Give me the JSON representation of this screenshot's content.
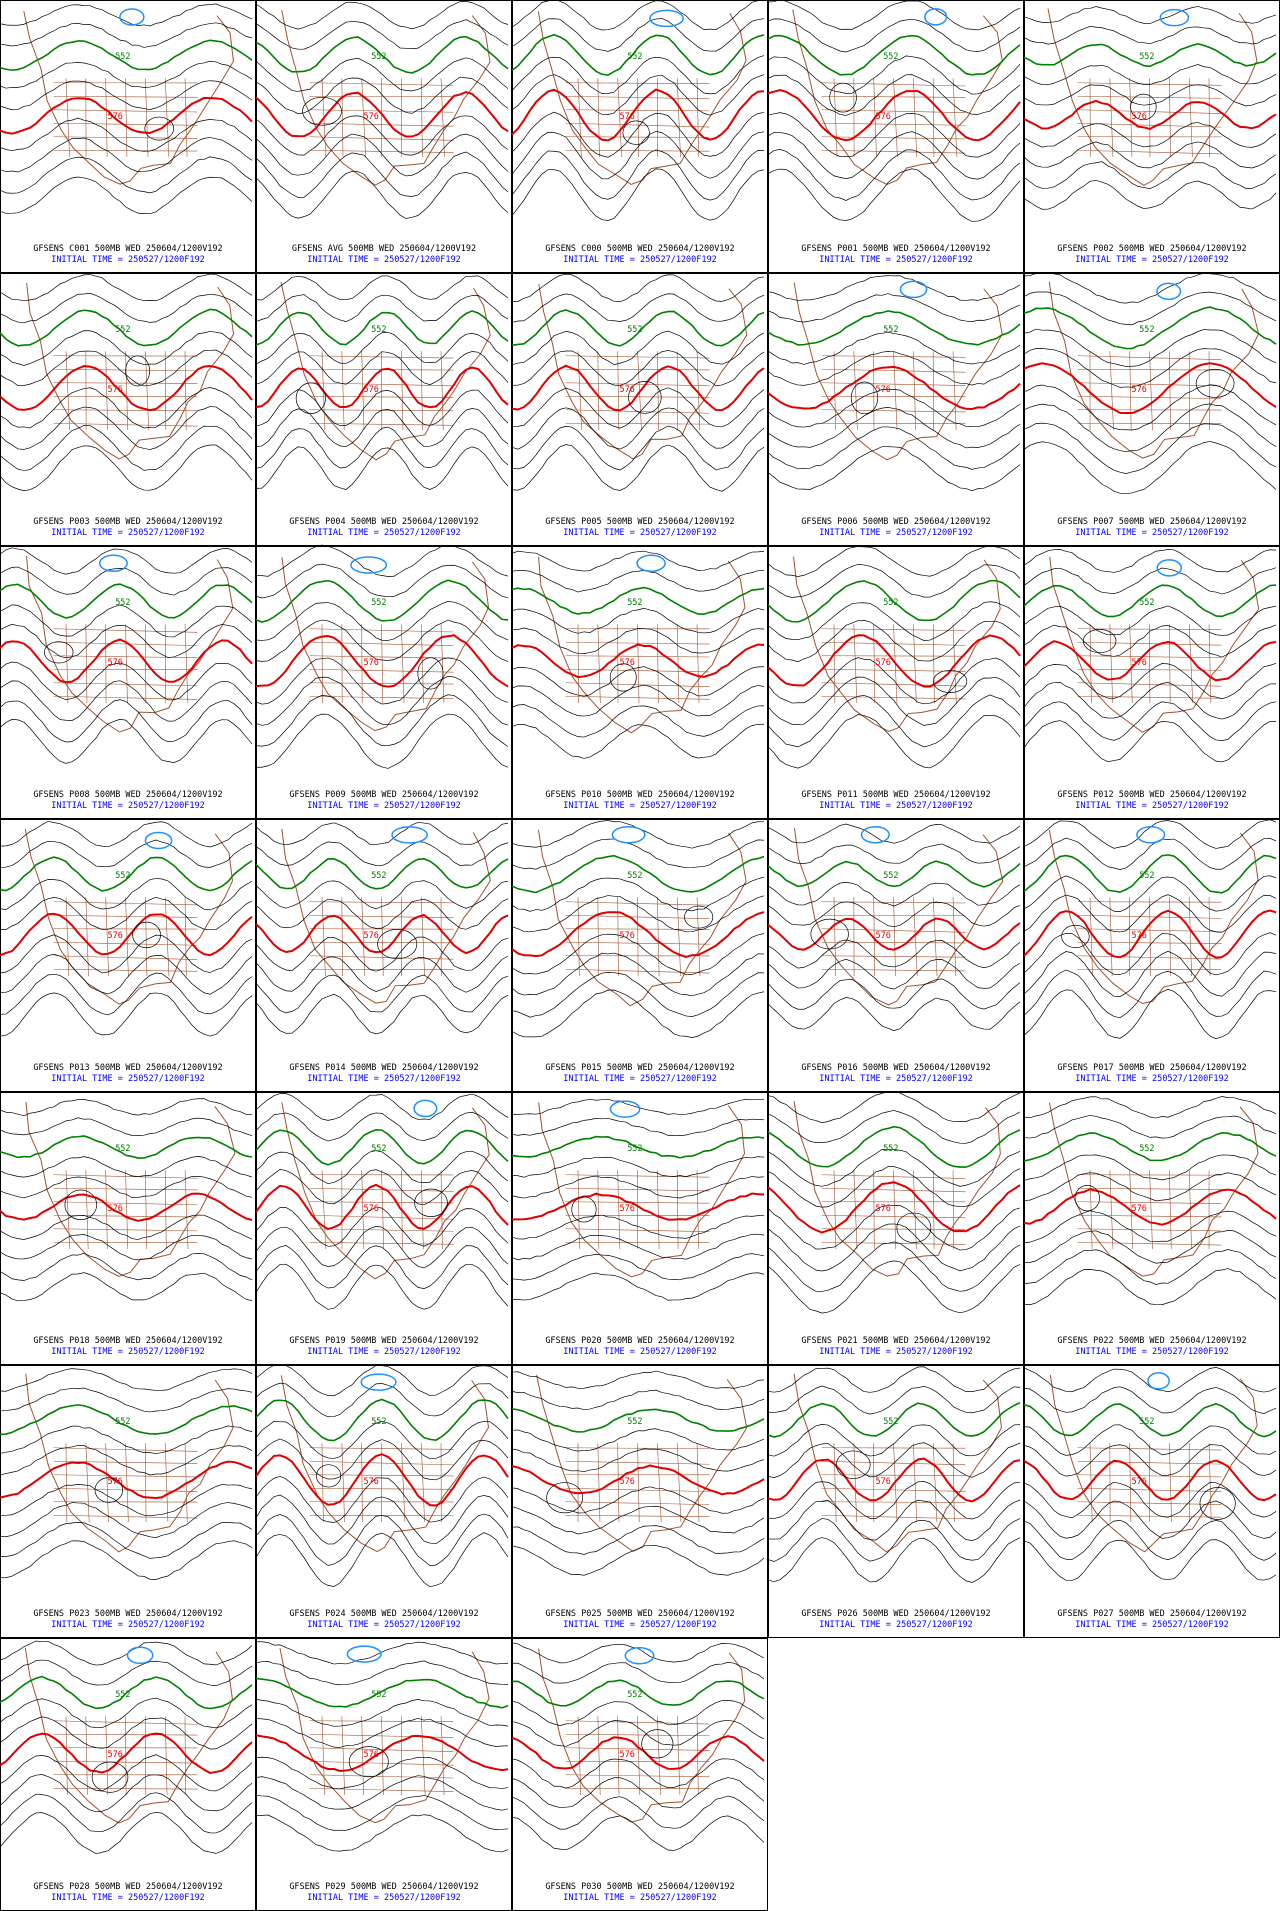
{
  "panels": [
    {
      "title": "GFSENS C001 500MB WED 250604/1200V192",
      "subtitle": "INITIAL TIME = 250527/1200F192",
      "contour_labels": [
        "552",
        "576"
      ]
    },
    {
      "title": "GFSENS AVG 500MB WED 250604/1200V192",
      "subtitle": "INITIAL TIME = 250527/1200F192",
      "contour_labels": [
        "552",
        "576"
      ]
    },
    {
      "title": "GFSENS C000 500MB WED 250604/1200V192",
      "subtitle": "INITIAL TIME = 250527/1200F192",
      "contour_labels": [
        "552",
        "576"
      ]
    },
    {
      "title": "GFSENS P001 500MB WED 250604/1200V192",
      "subtitle": "INITIAL TIME = 250527/1200F192",
      "contour_labels": [
        "552",
        "576"
      ]
    },
    {
      "title": "GFSENS P002 500MB WED 250604/1200V192",
      "subtitle": "INITIAL TIME = 250527/1200F192",
      "contour_labels": [
        "552",
        "576"
      ]
    },
    {
      "title": "GFSENS P003 500MB WED 250604/1200V192",
      "subtitle": "INITIAL TIME = 250527/1200F192",
      "contour_labels": [
        "552",
        "576"
      ]
    },
    {
      "title": "GFSENS P004 500MB WED 250604/1200V192",
      "subtitle": "INITIAL TIME = 250527/1200F192",
      "contour_labels": [
        "552",
        "576"
      ]
    },
    {
      "title": "GFSENS P005 500MB WED 250604/1200V192",
      "subtitle": "INITIAL TIME = 250527/1200F192",
      "contour_labels": [
        "552",
        "576"
      ]
    },
    {
      "title": "GFSENS P006 500MB WED 250604/1200V192",
      "subtitle": "INITIAL TIME = 250527/1200F192",
      "contour_labels": [
        "552",
        "576"
      ]
    },
    {
      "title": "GFSENS P007 500MB WED 250604/1200V192",
      "subtitle": "INITIAL TIME = 250527/1200F192",
      "contour_labels": [
        "552",
        "576"
      ]
    },
    {
      "title": "GFSENS P008 500MB WED 250604/1200V192",
      "subtitle": "INITIAL TIME = 250527/1200F192",
      "contour_labels": [
        "552",
        "576"
      ]
    },
    {
      "title": "GFSENS P009 500MB WED 250604/1200V192",
      "subtitle": "INITIAL TIME = 250527/1200F192",
      "contour_labels": [
        "552",
        "576"
      ]
    },
    {
      "title": "GFSENS P010 500MB WED 250604/1200V192",
      "subtitle": "INITIAL TIME = 250527/1200F192",
      "contour_labels": [
        "552",
        "576"
      ]
    },
    {
      "title": "GFSENS P011 500MB WED 250604/1200V192",
      "subtitle": "INITIAL TIME = 250527/1200F192",
      "contour_labels": [
        "552",
        "576"
      ]
    },
    {
      "title": "GFSENS P012 500MB WED 250604/1200V192",
      "subtitle": "INITIAL TIME = 250527/1200F192",
      "contour_labels": [
        "552",
        "576"
      ]
    },
    {
      "title": "GFSENS P013 500MB WED 250604/1200V192",
      "subtitle": "INITIAL TIME = 250527/1200F192",
      "contour_labels": [
        "552",
        "576"
      ]
    },
    {
      "title": "GFSENS P014 500MB WED 250604/1200V192",
      "subtitle": "INITIAL TIME = 250527/1200F192",
      "contour_labels": [
        "552",
        "576"
      ]
    },
    {
      "title": "GFSENS P015 500MB WED 250604/1200V192",
      "subtitle": "INITIAL TIME = 250527/1200F192",
      "contour_labels": [
        "552",
        "576"
      ]
    },
    {
      "title": "GFSENS P016 500MB WED 250604/1200V192",
      "subtitle": "INITIAL TIME = 250527/1200F192",
      "contour_labels": [
        "552",
        "576"
      ]
    },
    {
      "title": "GFSENS P017 500MB WED 250604/1200V192",
      "subtitle": "INITIAL TIME = 250527/1200F192",
      "contour_labels": [
        "552",
        "576"
      ]
    },
    {
      "title": "GFSENS P018 500MB WED 250604/1200V192",
      "subtitle": "INITIAL TIME = 250527/1200F192",
      "contour_labels": [
        "552",
        "576"
      ]
    },
    {
      "title": "GFSENS P019 500MB WED 250604/1200V192",
      "subtitle": "INITIAL TIME = 250527/1200F192",
      "contour_labels": [
        "552",
        "576"
      ]
    },
    {
      "title": "GFSENS P020 500MB WED 250604/1200V192",
      "subtitle": "INITIAL TIME = 250527/1200F192",
      "contour_labels": [
        "552",
        "576"
      ]
    },
    {
      "title": "GFSENS P021 500MB WED 250604/1200V192",
      "subtitle": "INITIAL TIME = 250527/1200F192",
      "contour_labels": [
        "552",
        "576"
      ]
    },
    {
      "title": "GFSENS P022 500MB WED 250604/1200V192",
      "subtitle": "INITIAL TIME = 250527/1200F192",
      "contour_labels": [
        "552",
        "576"
      ]
    },
    {
      "title": "GFSENS P023 500MB WED 250604/1200V192",
      "subtitle": "INITIAL TIME = 250527/1200F192",
      "contour_labels": [
        "552",
        "576"
      ]
    },
    {
      "title": "GFSENS P024 500MB WED 250604/1200V192",
      "subtitle": "INITIAL TIME = 250527/1200F192",
      "contour_labels": [
        "552",
        "576"
      ]
    },
    {
      "title": "GFSENS P025 500MB WED 250604/1200V192",
      "subtitle": "INITIAL TIME = 250527/1200F192",
      "contour_labels": [
        "552",
        "576"
      ]
    },
    {
      "title": "GFSENS P026 500MB WED 250604/1200V192",
      "subtitle": "INITIAL TIME = 250527/1200F192",
      "contour_labels": [
        "552",
        "576"
      ]
    },
    {
      "title": "GFSENS P027 500MB WED 250604/1200V192",
      "subtitle": "INITIAL TIME = 250527/1200F192",
      "contour_labels": [
        "552",
        "576"
      ]
    },
    {
      "title": "GFSENS P028 500MB WED 250604/1200V192",
      "subtitle": "INITIAL TIME = 250527/1200F192",
      "contour_labels": [
        "552",
        "576"
      ]
    },
    {
      "title": "GFSENS P029 500MB WED 250604/1200V192",
      "subtitle": "INITIAL TIME = 250527/1200F192",
      "contour_labels": [
        "552",
        "576"
      ]
    },
    {
      "title": "GFSENS P030 500MB WED 250604/1200V192",
      "subtitle": "INITIAL TIME = 250527/1200F192",
      "contour_labels": [
        "552",
        "576"
      ]
    }
  ]
}
